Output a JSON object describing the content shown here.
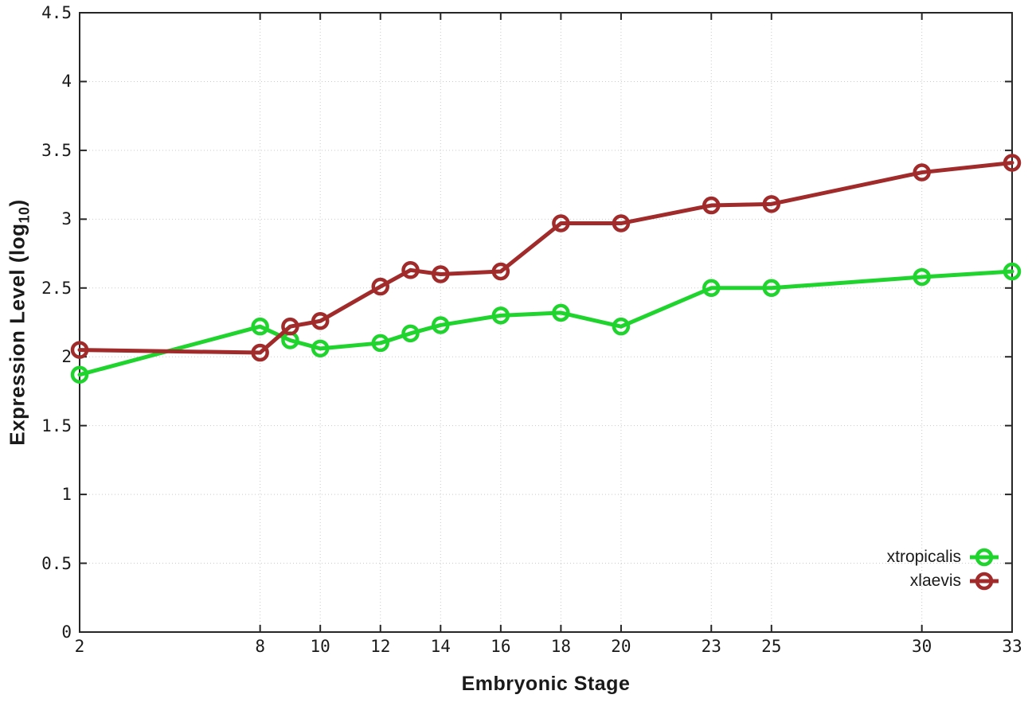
{
  "chart_data": {
    "type": "line",
    "title": "",
    "xlabel": "Embryonic Stage",
    "ylabel": {
      "prefix": "Expression Level (log",
      "sub": "10",
      "suffix": ")"
    },
    "xlim": [
      2,
      33
    ],
    "ylim": [
      0,
      4.5
    ],
    "grid": true,
    "legend_position": "inside-bottom-right",
    "x_ticks": [
      2,
      8,
      10,
      12,
      14,
      16,
      18,
      20,
      23,
      25,
      30,
      33
    ],
    "x_tick_labels": [
      "2",
      "8",
      "10",
      "12",
      "14",
      "16",
      "18",
      "20",
      "23",
      "25",
      "30",
      "33"
    ],
    "y_ticks": [
      0,
      0.5,
      1,
      1.5,
      2,
      2.5,
      3,
      3.5,
      4,
      4.5
    ],
    "y_tick_labels": [
      "0",
      "0.5",
      "1",
      "1.5",
      "2",
      "2.5",
      "3",
      "3.5",
      "4",
      "4.5"
    ],
    "x": [
      2,
      8,
      9,
      10,
      12,
      13,
      14,
      16,
      18,
      20,
      23,
      25,
      30,
      33
    ],
    "series": [
      {
        "name": "xtropicalis",
        "color": "#1ed42d",
        "marker": "open-circle",
        "values": [
          1.87,
          2.22,
          2.12,
          2.06,
          2.1,
          2.17,
          2.23,
          2.3,
          2.32,
          2.22,
          2.5,
          2.5,
          2.58,
          2.62
        ]
      },
      {
        "name": "xlaevis",
        "color": "#a12a2a",
        "marker": "open-circle",
        "values": [
          2.05,
          2.03,
          2.22,
          2.26,
          2.51,
          2.63,
          2.6,
          2.62,
          2.97,
          2.97,
          3.1,
          3.11,
          3.34,
          3.41
        ]
      }
    ],
    "axis_color": "#262626",
    "grid_color": "#c9c9c9",
    "text_color": "#1a1a1a"
  }
}
